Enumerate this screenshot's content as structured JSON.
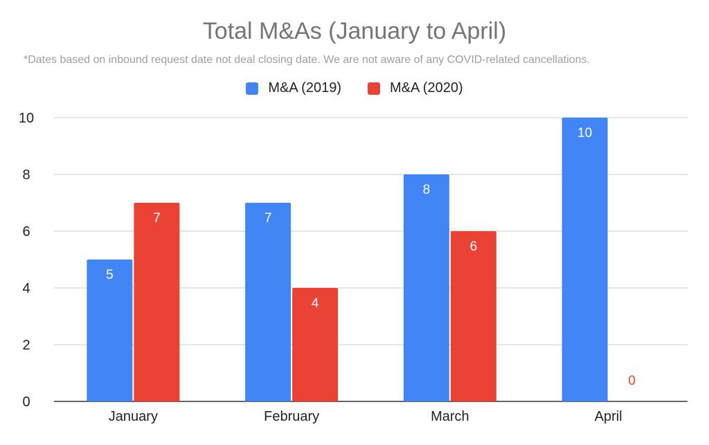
{
  "chart_data": {
    "type": "bar",
    "title": "Total M&As (January to April)",
    "subtitle": "*Dates based on inbound request date not deal closing date.  We are not aware of any COVID-related cancellations.",
    "categories": [
      "January",
      "February",
      "March",
      "April"
    ],
    "series": [
      {
        "name": "M&A (2019)",
        "color": "#4285f4",
        "values": [
          5,
          7,
          8,
          10
        ]
      },
      {
        "name": "M&A (2020)",
        "color": "#ea4335",
        "values": [
          7,
          4,
          6,
          0
        ]
      }
    ],
    "ylim": [
      0,
      10
    ],
    "yticks": [
      "0",
      "2",
      "4",
      "6",
      "8",
      "10"
    ],
    "ytick_values": [
      0,
      2,
      4,
      6,
      8,
      10
    ],
    "grid": true,
    "legend_position": "top",
    "data_labels": true
  }
}
